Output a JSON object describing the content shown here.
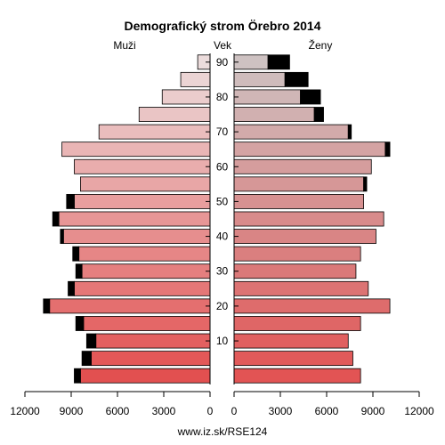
{
  "chart_data": {
    "type": "bar",
    "title": "Demografický strom Örebro 2014",
    "left_label": "Muži",
    "center_label": "Vek",
    "right_label": "Ženy",
    "footer": "www.iz.sk/RSE124",
    "xlim": [
      0,
      12000
    ],
    "x_ticks": [
      0,
      3000,
      6000,
      9000,
      12000
    ],
    "x_tick_labels_left": [
      "12000",
      "9000",
      "6000",
      "3000",
      "0"
    ],
    "x_tick_labels_right": [
      "0",
      "3000",
      "6000",
      "9000",
      "12000"
    ],
    "age_ticks": [
      "10",
      "20",
      "30",
      "40",
      "50",
      "60",
      "70",
      "80",
      "90"
    ],
    "categories": [
      "0-4",
      "5-9",
      "10-14",
      "15-19",
      "20-24",
      "25-29",
      "30-34",
      "35-39",
      "40-44",
      "45-49",
      "50-54",
      "55-59",
      "60-64",
      "65-69",
      "70-74",
      "75-79",
      "80-84",
      "85-89",
      "90+"
    ],
    "series": [
      {
        "name": "Muži",
        "values": [
          8400,
          7700,
          7400,
          8200,
          10400,
          8800,
          8300,
          8500,
          9500,
          9800,
          8800,
          8400,
          8800,
          9600,
          7200,
          4600,
          3100,
          1900,
          800
        ],
        "surplus": [
          400,
          600,
          600,
          500,
          400,
          400,
          400,
          400,
          200,
          400,
          500,
          0,
          0,
          0,
          0,
          0,
          0,
          0,
          0
        ]
      },
      {
        "name": "Ženy",
        "values": [
          8200,
          7700,
          7400,
          8200,
          10100,
          8700,
          7900,
          8200,
          9200,
          9700,
          8400,
          8400,
          8900,
          9800,
          7400,
          5200,
          4300,
          3300,
          2200
        ],
        "surplus": [
          0,
          0,
          0,
          0,
          0,
          0,
          0,
          0,
          0,
          0,
          0,
          200,
          0,
          300,
          200,
          600,
          1300,
          1500,
          1400
        ]
      }
    ]
  }
}
